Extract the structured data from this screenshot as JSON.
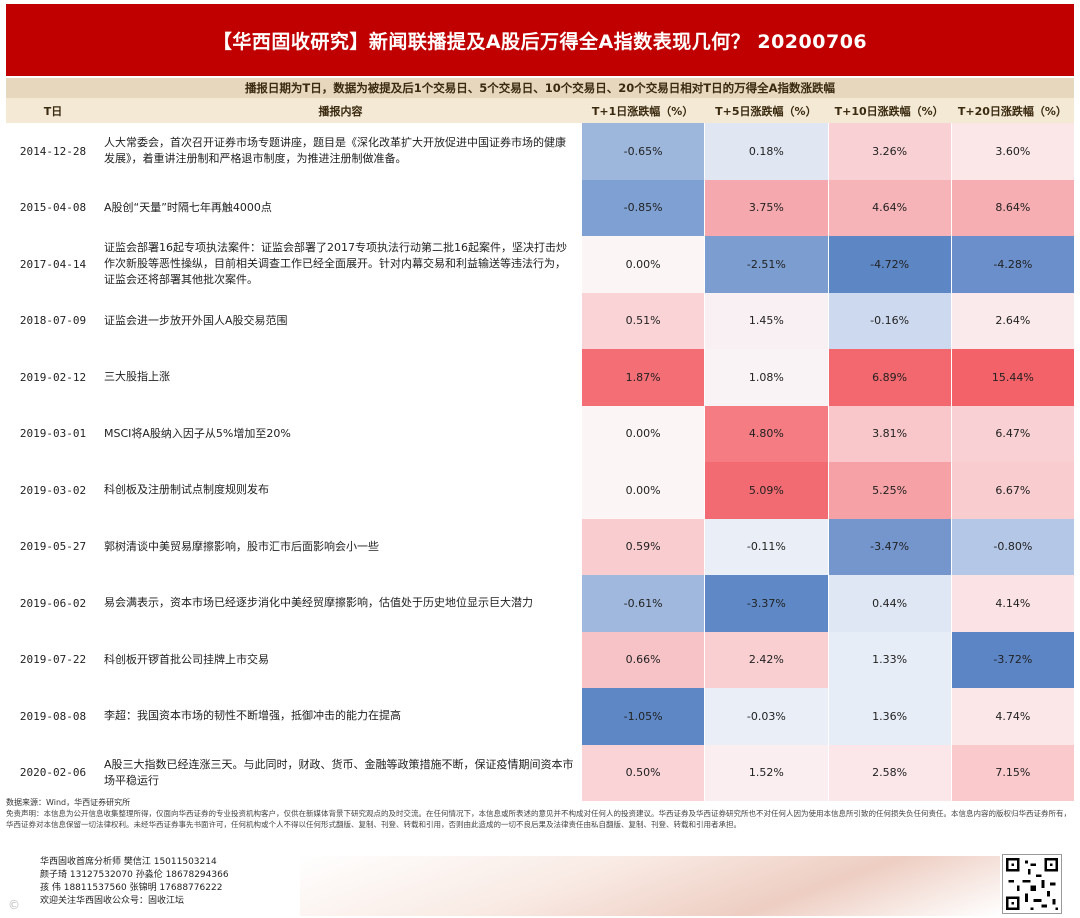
{
  "title": "【华西固收研究】新闻联播提及A股后万得全A指数表现几何？ 20200706",
  "subheader": "播报日期为T日，数据为被提及后1个交易日、5个交易日、10个交易日、20个交易日相对T日的万得全A指数涨跌幅",
  "headers": {
    "date": "T日",
    "content": "播报内容",
    "t1": "T+1日涨跌幅（%）",
    "t5": "T+5日涨跌幅（%）",
    "t10": "T+10日涨跌幅（%）",
    "t20": "T+20日涨跌幅（%）"
  },
  "rows": [
    {
      "date": "2014-12-28",
      "content": "人大常委会，首次召开证券市场专题讲座，题目是《深化改革扩大开放促进中国证券市场的健康发展》，着重讲注册制和严格退市制度，为推进注册制做准备。",
      "t1": "-0.65%",
      "t5": "0.18%",
      "t10": "3.26%",
      "t20": "3.60%",
      "c1": "#9db6dc",
      "c5": "#e0e7f3",
      "c10": "#f9d0d3",
      "c20": "#fbe6e8"
    },
    {
      "date": "2015-04-08",
      "content": "A股创“天量”时隔七年再触4000点",
      "t1": "-0.85%",
      "t5": "3.75%",
      "t10": "4.64%",
      "t20": "8.64%",
      "c1": "#7fa0d2",
      "c5": "#f5a9ae",
      "c10": "#f7b4b8",
      "c20": "#f7aeb2"
    },
    {
      "date": "2017-04-14",
      "content": "证监会部署16起专项执法案件：证监会部署了2017专项执法行动第二批16起案件，坚决打击炒作次新股等恶性操纵，目前相关调查工作已经全面展开。针对内幕交易和利益输送等违法行为，证监会还将部署其他批次案件。",
      "t1": "0.00%",
      "t5": "-2.51%",
      "t10": "-4.72%",
      "t20": "-4.28%",
      "c1": "#fbf5f6",
      "c5": "#7b9dd0",
      "c10": "#5d86c5",
      "c20": "#6a8fca"
    },
    {
      "date": "2018-07-09",
      "content": "证监会进一步放开外国人A股交易范围",
      "t1": "0.51%",
      "t5": "1.45%",
      "t10": "-0.16%",
      "t20": "2.64%",
      "c1": "#f9d3d6",
      "c5": "#f9f0f3",
      "c10": "#ccd9ee",
      "c20": "#fbeaec"
    },
    {
      "date": "2019-02-12",
      "content": "三大股指上涨",
      "t1": "1.87%",
      "t5": "1.08%",
      "t10": "6.89%",
      "t20": "15.44%",
      "c1": "#f36e75",
      "c5": "#faf3f5",
      "c10": "#f3676e",
      "c20": "#f36269"
    },
    {
      "date": "2019-03-01",
      "content": "MSCI将A股纳入因子从5%增加至20%",
      "t1": "0.00%",
      "t5": "4.80%",
      "t10": "3.81%",
      "t20": "6.47%",
      "c1": "#fbf5f6",
      "c5": "#f57c83",
      "c10": "#f9c7ca",
      "c20": "#f9d0d3"
    },
    {
      "date": "2019-03-02",
      "content": "科创板及注册制试点制度规则发布",
      "t1": "0.00%",
      "t5": "5.09%",
      "t10": "5.25%",
      "t20": "6.67%",
      "c1": "#fbf5f6",
      "c5": "#f36b72",
      "c10": "#f6a1a6",
      "c20": "#f9cccf"
    },
    {
      "date": "2019-05-27",
      "content": "郭树清谈中美贸易摩擦影响，股市汇市后面影响会小一些",
      "t1": "0.59%",
      "t5": "-0.11%",
      "t10": "-3.47%",
      "t20": "-0.80%",
      "c1": "#f9cdd0",
      "c5": "#eaeef6",
      "c10": "#7496cd",
      "c20": "#b4c7e6"
    },
    {
      "date": "2019-06-02",
      "content": "易会满表示，资本市场已经逐步消化中美经贸摩擦影响，估值处于历史地位显示巨大潜力",
      "t1": "-0.61%",
      "t5": "-3.37%",
      "t10": "0.44%",
      "t20": "4.14%",
      "c1": "#a0b8de",
      "c5": "#5f88c6",
      "c10": "#dfe7f4",
      "c20": "#fbe2e4"
    },
    {
      "date": "2019-07-22",
      "content": "科创板开锣首批公司挂牌上市交易",
      "t1": "0.66%",
      "t5": "2.42%",
      "t10": "1.33%",
      "t20": "-3.72%",
      "c1": "#f8c3c7",
      "c5": "#f9cfd2",
      "c10": "#e7edf7",
      "c20": "#5c85c5"
    },
    {
      "date": "2019-08-08",
      "content": "李超：我国资本市场的韧性不断增强，抵御冲击的能力在提高",
      "t1": "-1.05%",
      "t5": "-0.03%",
      "t10": "1.36%",
      "t20": "4.74%",
      "c1": "#5e87c6",
      "c5": "#e9eef7",
      "c10": "#e7edf7",
      "c20": "#fbe6e8"
    },
    {
      "date": "2020-02-06",
      "content": "A股三大指数已经连涨三天。与此同时，财政、货币、金融等政策措施不断，保证疫情期间资本市场平稳运行",
      "t1": "0.50%",
      "t5": "1.52%",
      "t10": "2.58%",
      "t20": "7.15%",
      "c1": "#f9d3d6",
      "c5": "#faeef1",
      "c10": "#fbe7e9",
      "c20": "#f9c9cc"
    }
  ],
  "source": "数据来源：Wind，华西证券研究所",
  "disclaimer": "免责声明：本信息为公开信息收集整理所得，仅面向华西证券的专业投资机构客户，仅供在新媒体背景下研究观点的及时交流。在任何情况下，本信息或所表述的意见并不构成对任何人的投资建议。华西证券及华西证券研究所也不对任何人因为使用本信息所引致的任何损失负任何责任。本信息内容的版权归华西证券所有，华西证券对本信息保留一切法律权利。未经华西证券事先书面许可，任何机构或个人不得以任何形式翻版、复制、刊登、转载和引用，否则由此造成的一切不良后果及法律责任由私自翻版、复制、刊登、转载和引用者承担。",
  "footer": {
    "lines": [
      "华西固收首席分析师 樊信江 15011503214",
      "颜子琦 13127532070   孙淼伦 18678294366",
      "孩  伟 18811537560   张锦明 17688776222",
      "欢迎关注华西固收公众号：固收江坛"
    ]
  }
}
